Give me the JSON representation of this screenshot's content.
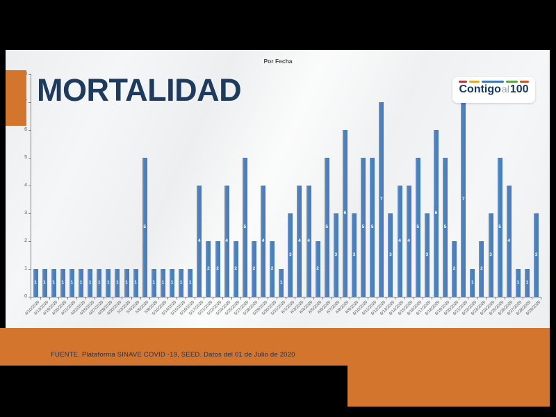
{
  "page": {
    "letterbox_color": "#000000",
    "slide_background": "#f5f6f7"
  },
  "header": {
    "title": "MORTALIDAD",
    "title_color": "#1e3a5c",
    "accent_block_color": "#d4752e"
  },
  "logo": {
    "part_contigo": "Contigo",
    "part_al": "al",
    "part_100": "100",
    "text_color": "#16375c",
    "al_color": "#8fa6ba",
    "dash_colors": [
      "#b03a3a",
      "#ddaa33",
      "#3c78b4",
      "#5ea54a",
      "#c4552e"
    ],
    "dash_widths": [
      13,
      16,
      34,
      18,
      14
    ]
  },
  "footer": {
    "band_color": "#d4752e",
    "source_text": "FUENTE. Plataforma SINAVE COVID -19, SEED. Datos del 01 de Julio de 2020",
    "source_text_color": "#1f3050"
  },
  "chart_data": {
    "type": "bar",
    "title": "Por Fecha",
    "xlabel": "",
    "ylabel": "",
    "ylim": [
      0,
      8
    ],
    "yticks": [
      0,
      1,
      2,
      3,
      4,
      5,
      6,
      7,
      8
    ],
    "grid": false,
    "data_labels": true,
    "bar_color": "#4f81bd",
    "label_color": "#ffffff",
    "tick_label_color": "#595959",
    "categories": [
      "4/10/2020",
      "4/13/2020",
      "4/19/2020",
      "4/20/2020",
      "4/21/2020",
      "4/22/2020",
      "4/25/2020",
      "4/27/2020",
      "4/28/2020",
      "4/30/2020",
      "5/2/2020",
      "5/4/2020",
      "5/6/2020",
      "5/8/2020",
      "5/10/2020",
      "5/14/2020",
      "5/15/2020",
      "5/16/2020",
      "5/17/2020",
      "5/21/2020",
      "5/22/2020",
      "5/24/2020",
      "5/25/2020",
      "5/27/2020",
      "5/28/2020",
      "5/29/2020",
      "5/30/2020",
      "5/31/2020",
      "6/1/2020",
      "6/3/2020",
      "6/4/2020",
      "6/5/2020",
      "6/6/2020",
      "6/7/2020",
      "6/8/2020",
      "6/9/2020",
      "6/10/2020",
      "6/11/2020",
      "6/12/2020",
      "6/13/2020",
      "6/14/2020",
      "6/15/2020",
      "6/16/2020",
      "6/17/2020",
      "6/18/2020",
      "6/19/2020",
      "6/20/2020",
      "6/21/2020",
      "6/22/2020",
      "6/23/2020",
      "6/24/2020",
      "6/25/2020",
      "6/26/2020",
      "6/27/2020",
      "6/28/2020",
      "6/29/2020"
    ],
    "values": [
      1,
      1,
      1,
      1,
      1,
      1,
      1,
      1,
      1,
      1,
      1,
      1,
      5,
      1,
      1,
      1,
      1,
      1,
      4,
      2,
      2,
      4,
      2,
      5,
      2,
      4,
      2,
      1,
      3,
      4,
      4,
      2,
      5,
      3,
      6,
      3,
      5,
      5,
      7,
      3,
      4,
      4,
      5,
      3,
      6,
      5,
      2,
      7,
      1,
      2,
      3,
      5,
      4,
      1,
      1,
      3
    ]
  }
}
